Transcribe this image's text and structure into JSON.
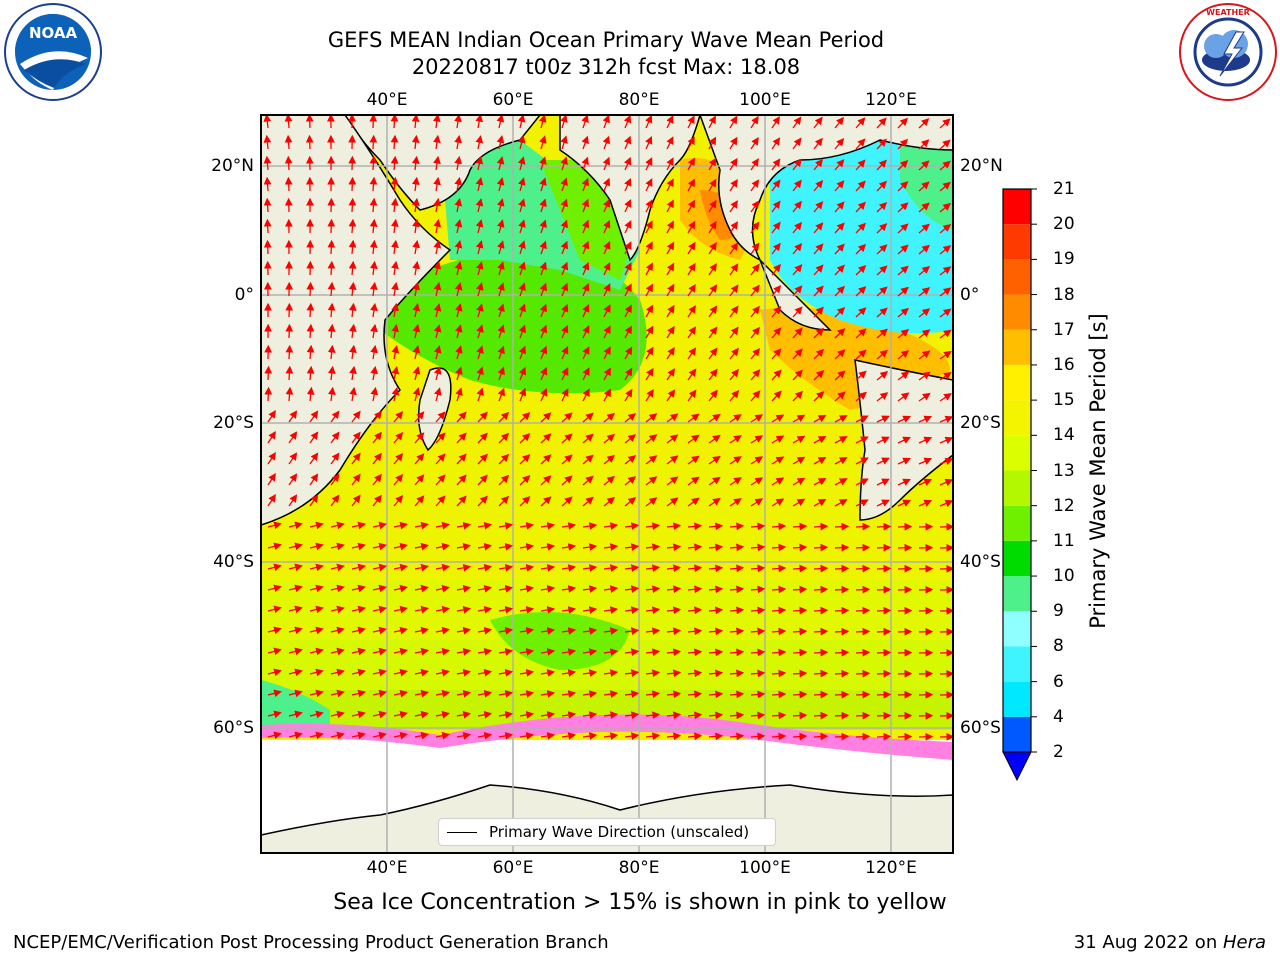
{
  "title": {
    "line1": "GEFS MEAN Indian Ocean Primary Wave Mean Period",
    "line2": "20220817 t00z 312h fcst   Max: 18.08"
  },
  "logos": {
    "noaa": {
      "text": "NOAA",
      "ring_text": "NATIONAL OCEANIC AND ATMOSPHERIC ADMINISTRATION · U.S. DEPARTMENT OF COMMERCE"
    },
    "nws": {
      "ring_text": "NATIONAL WEATHER SERVICE"
    }
  },
  "map": {
    "lon_ticks": [
      "40°E",
      "60°E",
      "80°E",
      "100°E",
      "120°E"
    ],
    "lat_ticks": [
      "20°N",
      "0°",
      "20°S",
      "40°S",
      "60°S"
    ],
    "lon_range": [
      20,
      130
    ],
    "lat_range": [
      -77,
      28
    ],
    "projection": "Mercator",
    "grid": true,
    "land_color": "#efefdf",
    "sea_ice_color": "#ffffff"
  },
  "legend": {
    "label": "Primary Wave Direction (unscaled)",
    "placement": "lower-center"
  },
  "colorbar": {
    "title": "Primary Wave Mean Period [s]",
    "levels": [
      "2",
      "4",
      "6",
      "8",
      "9",
      "10",
      "11",
      "12",
      "13",
      "14",
      "15",
      "16",
      "17",
      "18",
      "19",
      "20",
      "21"
    ],
    "colors": [
      "#0058ff",
      "#00e8ff",
      "#40f4ff",
      "#90ffff",
      "#4ef08c",
      "#00dc00",
      "#6ef000",
      "#b4f800",
      "#dcff00",
      "#f4f400",
      "#fff000",
      "#ffbe00",
      "#ff8c00",
      "#ff6000",
      "#ff3a00",
      "#ff0000"
    ],
    "extend_low_color": "#0000ff"
  },
  "subtitle": "Sea Ice Concentration > 15% is shown in pink to yellow",
  "footer": {
    "left": "NCEP/EMC/Verification Post Processing Product Generation Branch",
    "right_date": "31 Aug 2022 on ",
    "right_machine": "Hera"
  }
}
